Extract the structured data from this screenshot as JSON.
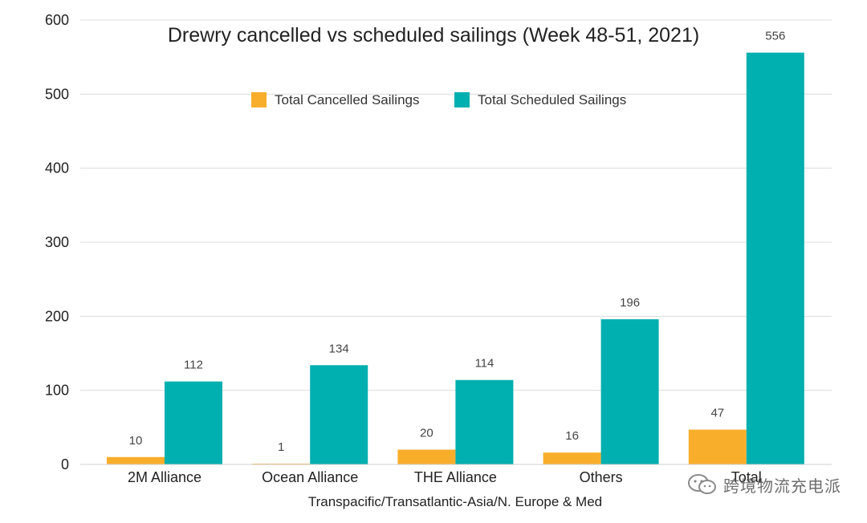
{
  "chart_data": {
    "type": "bar",
    "title": "Drewry cancelled vs scheduled sailings (Week 48-51, 2021)",
    "xlabel": "Transpacific/Transatlantic-Asia/N. Europe & Med",
    "ylabel": "",
    "categories": [
      "2M Alliance",
      "Ocean Alliance",
      "THE Alliance",
      "Others",
      "Total"
    ],
    "series": [
      {
        "name": "Total Cancelled Sailings",
        "values": [
          10,
          1,
          20,
          16,
          47
        ],
        "color": "#F9AE2B"
      },
      {
        "name": "Total Scheduled Sailings",
        "values": [
          112,
          134,
          114,
          196,
          556
        ],
        "color": "#00AFAF"
      }
    ],
    "ylim": [
      0,
      600
    ],
    "yticks": [
      "0",
      "100",
      "200",
      "300",
      "400",
      "500",
      "600"
    ],
    "grid": true,
    "legend_position": "top-center",
    "data_labels": true
  },
  "watermark": {
    "text": "跨境物流充电派",
    "icon": "wechat-icon"
  }
}
